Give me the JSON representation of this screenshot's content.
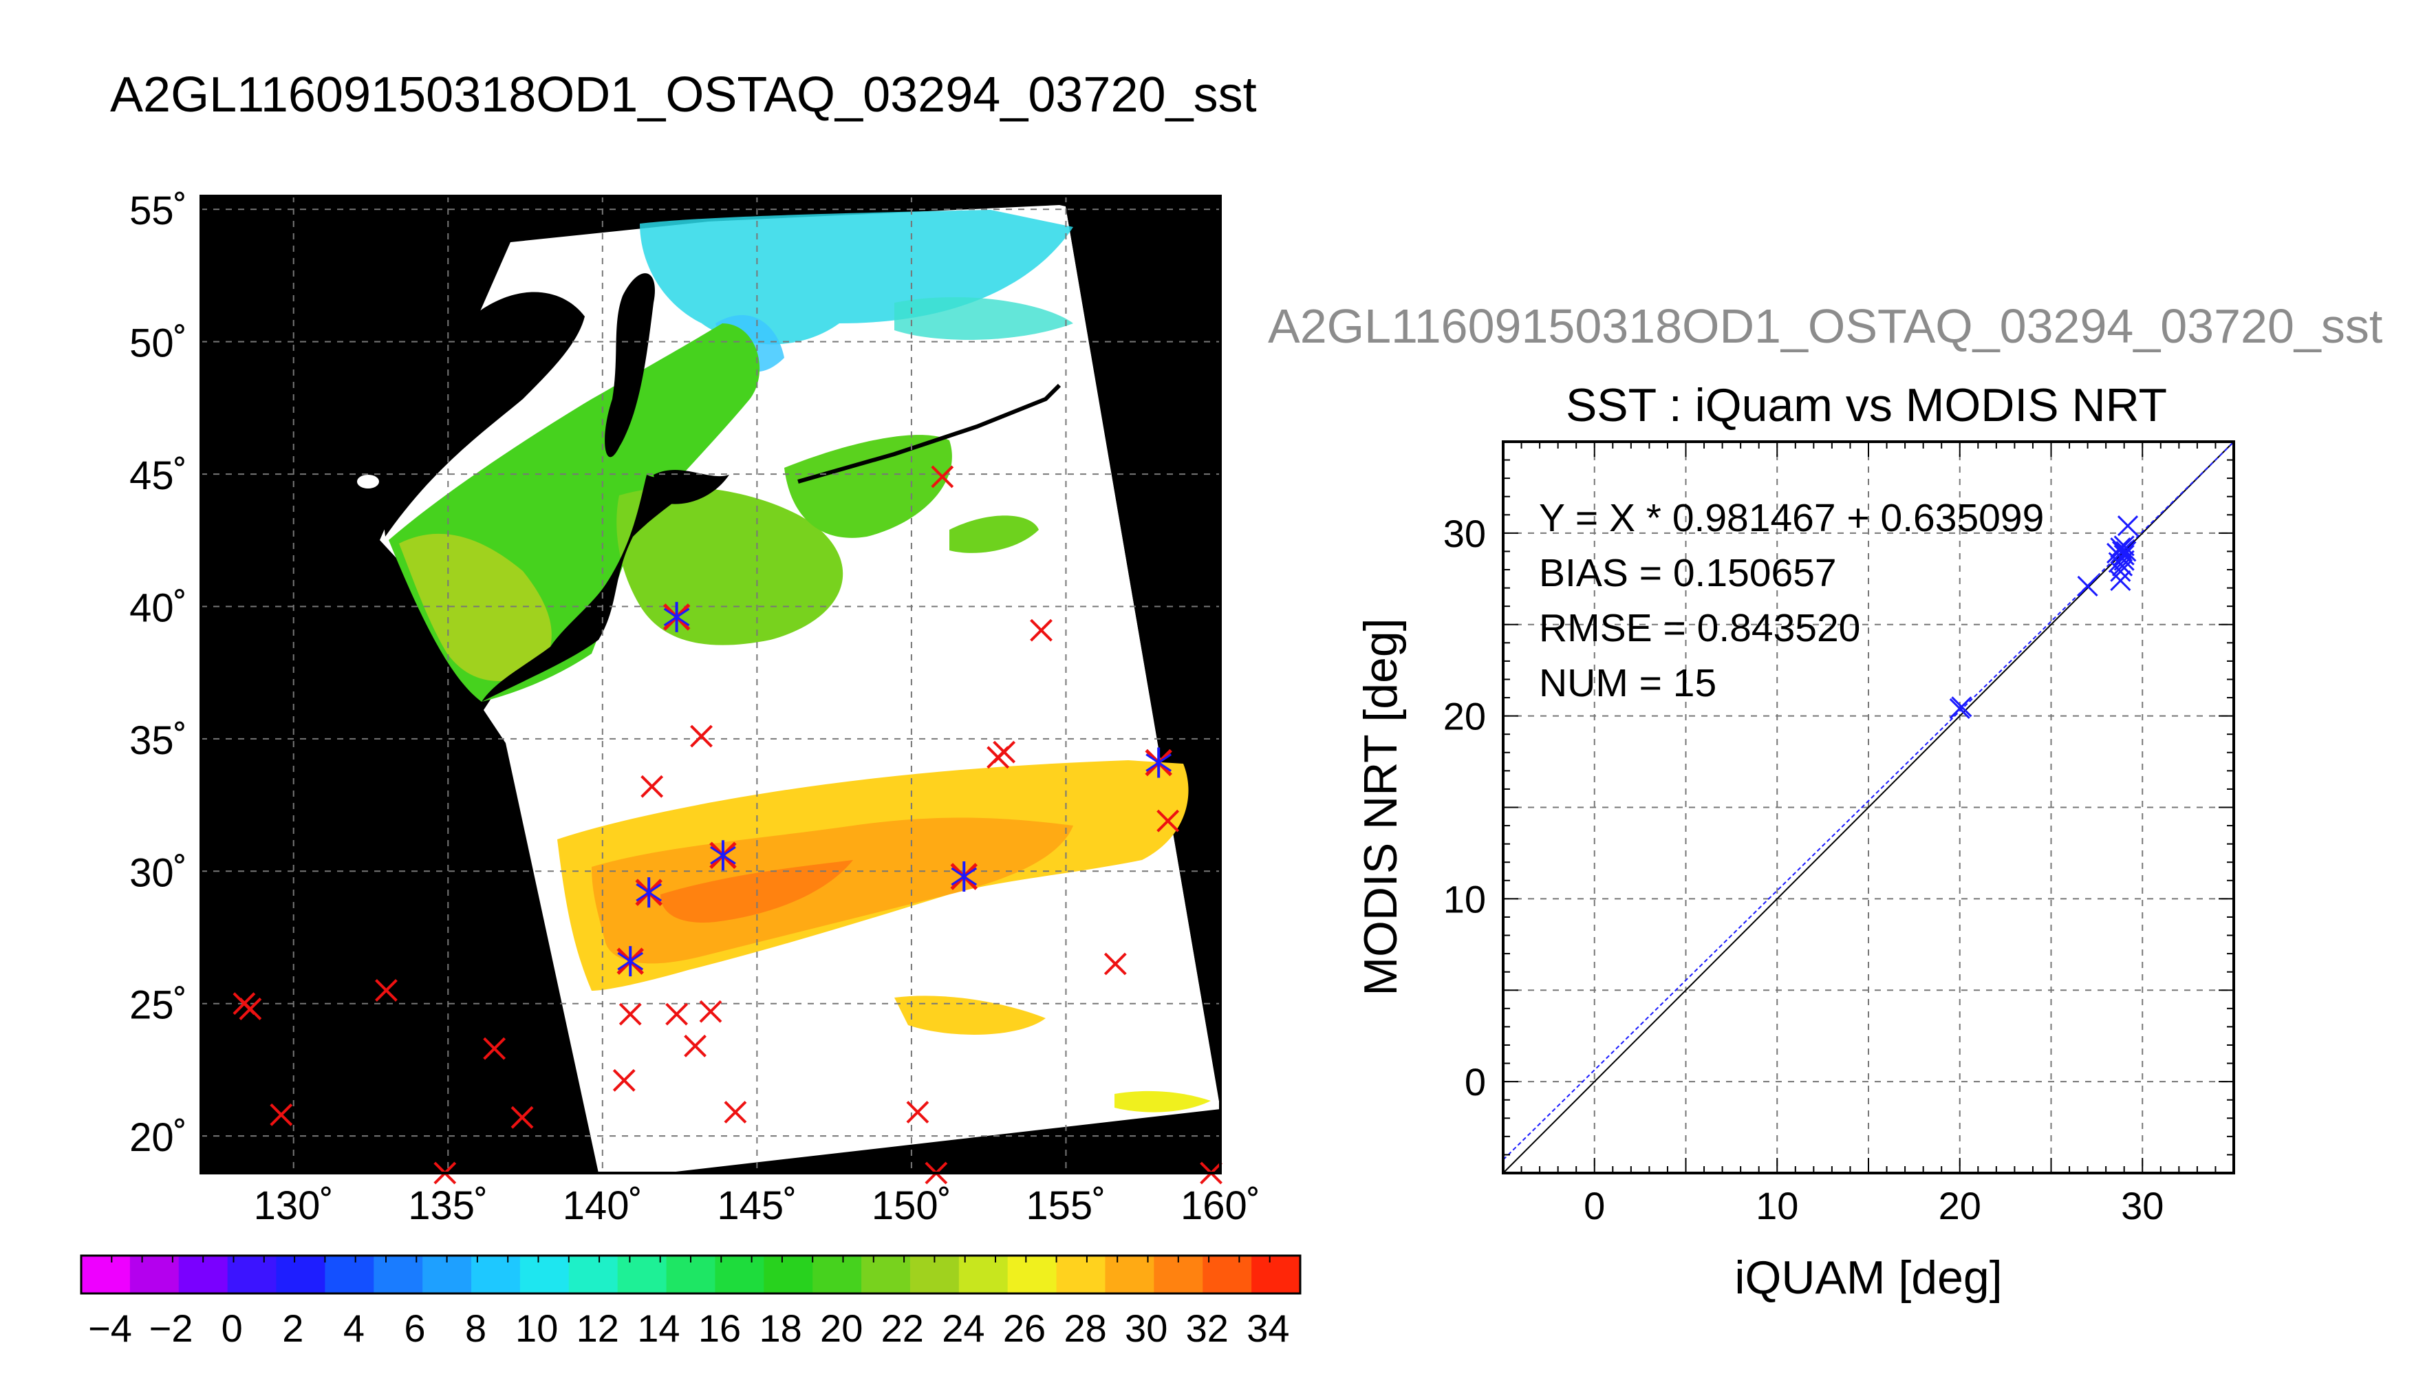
{
  "page_title": "A2GL11609150318OD1_OSTAQ_03294_03720_sst",
  "overlay_title": "A2GL11609150318OD1_OSTAQ_03294_03720_sst",
  "colors": {
    "land": "#000000",
    "cloud": "#ffffff",
    "match_red": "#ee1111",
    "match_blue": "#1a1aff",
    "overlay_title": "#8c8c8c",
    "colorbar": [
      "#ee00ff",
      "#b400ee",
      "#7a00ff",
      "#3c14ff",
      "#1e1eff",
      "#1450ff",
      "#1a7cff",
      "#1ea0ff",
      "#1ec8ff",
      "#1ee6f0",
      "#1ef0c8",
      "#1ef096",
      "#1ee664",
      "#1edc3c",
      "#28d21e",
      "#46d21e",
      "#78d21e",
      "#a0d21e",
      "#c8e61e",
      "#f0f01e",
      "#ffd21e",
      "#ffaa14",
      "#ff8210",
      "#ff5a0c",
      "#ff2608"
    ]
  },
  "map": {
    "lat_ticks": [
      "55˚",
      "50˚",
      "45˚",
      "40˚",
      "35˚",
      "30˚",
      "25˚",
      "20˚"
    ],
    "lon_ticks": [
      "130˚",
      "135˚",
      "140˚",
      "145˚",
      "150˚",
      "155˚",
      "160˚"
    ],
    "colorbar_ticks": [
      "−4",
      "−2",
      "0",
      "2",
      "4",
      "6",
      "8",
      "10",
      "12",
      "14",
      "16",
      "18",
      "20",
      "22",
      "24",
      "26",
      "28",
      "30",
      "32",
      "34"
    ],
    "lon_range": [
      127,
      160
    ],
    "lat_range": [
      18.6,
      55.5
    ],
    "matchups_red": [
      [
        128.4,
        25.0
      ],
      [
        128.6,
        24.8
      ],
      [
        129.6,
        20.8
      ],
      [
        133.0,
        25.5
      ],
      [
        134.9,
        18.6
      ],
      [
        136.5,
        23.3
      ],
      [
        137.4,
        20.7
      ],
      [
        140.7,
        22.1
      ],
      [
        140.9,
        24.6
      ],
      [
        142.4,
        24.6
      ],
      [
        143.0,
        23.4
      ],
      [
        143.5,
        24.7
      ],
      [
        144.3,
        20.9
      ],
      [
        141.6,
        33.2
      ],
      [
        143.2,
        35.1
      ],
      [
        150.2,
        20.9
      ],
      [
        150.8,
        18.6
      ],
      [
        153.0,
        34.5
      ],
      [
        152.8,
        34.3
      ],
      [
        151.0,
        44.9
      ],
      [
        154.2,
        39.1
      ],
      [
        156.6,
        26.5
      ],
      [
        158.3,
        31.9
      ],
      [
        159.7,
        18.6
      ]
    ],
    "matchups_star": [
      [
        142.4,
        39.6
      ],
      [
        143.9,
        30.6
      ],
      [
        141.5,
        29.2
      ],
      [
        140.9,
        26.6
      ],
      [
        151.7,
        29.8
      ],
      [
        158.0,
        34.1
      ]
    ]
  },
  "scatter": {
    "title": "SST : iQuam vs MODIS NRT",
    "xlabel": "iQUAM [deg]",
    "ylabel": "MODIS NRT [deg]",
    "stats": [
      "Y = X * 0.981467 + 0.635099",
      "BIAS = 0.150657",
      "RMSE = 0.843520",
      "NUM = 15"
    ]
  },
  "chart_data": {
    "type": "scatter",
    "title": "SST : iQuam vs MODIS NRT",
    "xlabel": "iQUAM [deg]",
    "ylabel": "MODIS NRT [deg]",
    "xlim": [
      -5,
      35
    ],
    "ylim": [
      -5,
      35
    ],
    "xticks": [
      0,
      10,
      20,
      30
    ],
    "yticks": [
      0,
      10,
      20,
      30
    ],
    "grid": true,
    "x": [
      20.0,
      20.1,
      27.0,
      28.6,
      28.7,
      28.8,
      28.8,
      28.8,
      28.9,
      28.9,
      29.0,
      29.0,
      29.0,
      29.1,
      29.2
    ],
    "y": [
      20.4,
      20.5,
      27.1,
      28.9,
      28.4,
      27.9,
      27.4,
      29.2,
      28.2,
      29.0,
      28.5,
      28.8,
      29.3,
      29.0,
      30.4
    ],
    "fit": {
      "slope": 0.981467,
      "intercept": 0.635099
    },
    "stats": {
      "Y = X * 0.981467 + 0.635099": "",
      "BIAS": 0.150657,
      "RMSE": 0.84352,
      "NUM": 15
    }
  }
}
